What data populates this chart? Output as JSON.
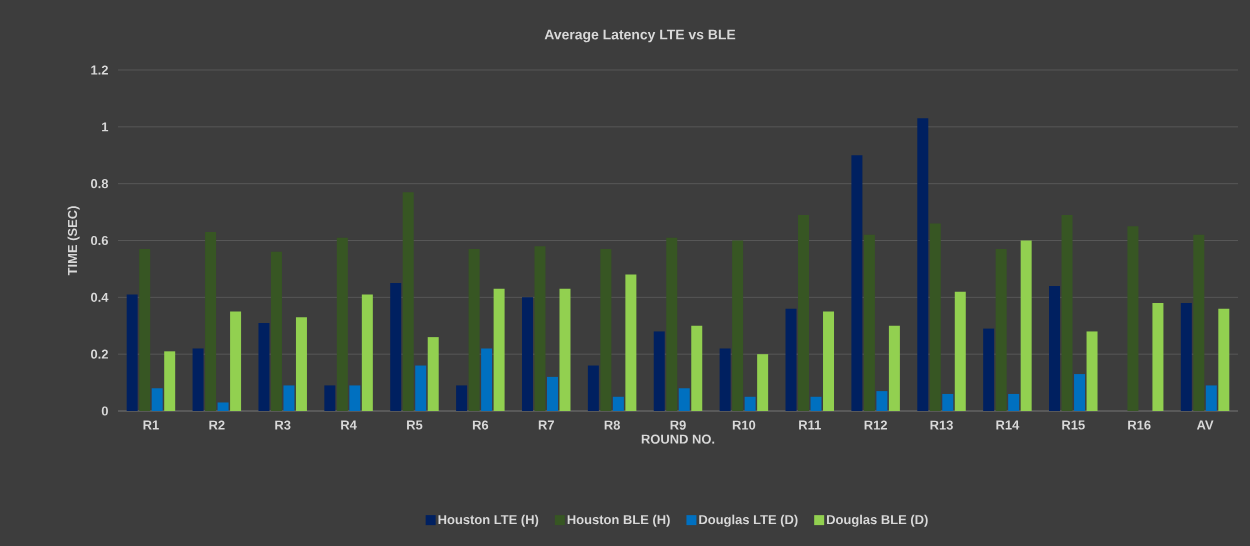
{
  "chart_data": {
    "type": "bar",
    "title": "Average Latency  LTE vs BLE",
    "xlabel": "ROUND NO.",
    "ylabel": "TIME (SEC)",
    "categories": [
      "R1",
      "R2",
      "R3",
      "R4",
      "R5",
      "R6",
      "R7",
      "R8",
      "R9",
      "R10",
      "R11",
      "R12",
      "R13",
      "R14",
      "R15",
      "R16",
      "AV"
    ],
    "series": [
      {
        "name": "Houston LTE (H)",
        "color": "#002060",
        "values": [
          0.41,
          0.22,
          0.31,
          0.09,
          0.45,
          0.09,
          0.4,
          0.16,
          0.28,
          0.22,
          0.36,
          0.9,
          1.03,
          0.29,
          0.44,
          null,
          0.38
        ]
      },
      {
        "name": "Houston BLE (H)",
        "color": "#375623",
        "values": [
          0.57,
          0.63,
          0.56,
          0.61,
          0.77,
          0.57,
          0.58,
          0.57,
          0.61,
          0.6,
          0.69,
          0.62,
          0.66,
          0.57,
          0.69,
          0.65,
          0.62
        ]
      },
      {
        "name": "Douglas LTE (D)",
        "color": "#0070c0",
        "values": [
          0.08,
          0.03,
          0.09,
          0.09,
          0.16,
          0.22,
          0.12,
          0.05,
          0.08,
          0.05,
          0.05,
          0.07,
          0.06,
          0.06,
          0.13,
          null,
          0.09
        ]
      },
      {
        "name": "Douglas BLE (D)",
        "color": "#92d050",
        "values": [
          0.21,
          0.35,
          0.33,
          0.41,
          0.26,
          0.43,
          0.43,
          0.48,
          0.3,
          0.2,
          0.35,
          0.3,
          0.42,
          0.6,
          0.28,
          0.38,
          0.36
        ]
      }
    ],
    "ylim": [
      0,
      1.2
    ],
    "yticks": [
      0,
      0.2,
      0.4,
      0.6,
      0.8,
      1,
      1.2
    ],
    "grid": "y",
    "legend": "bottom"
  }
}
